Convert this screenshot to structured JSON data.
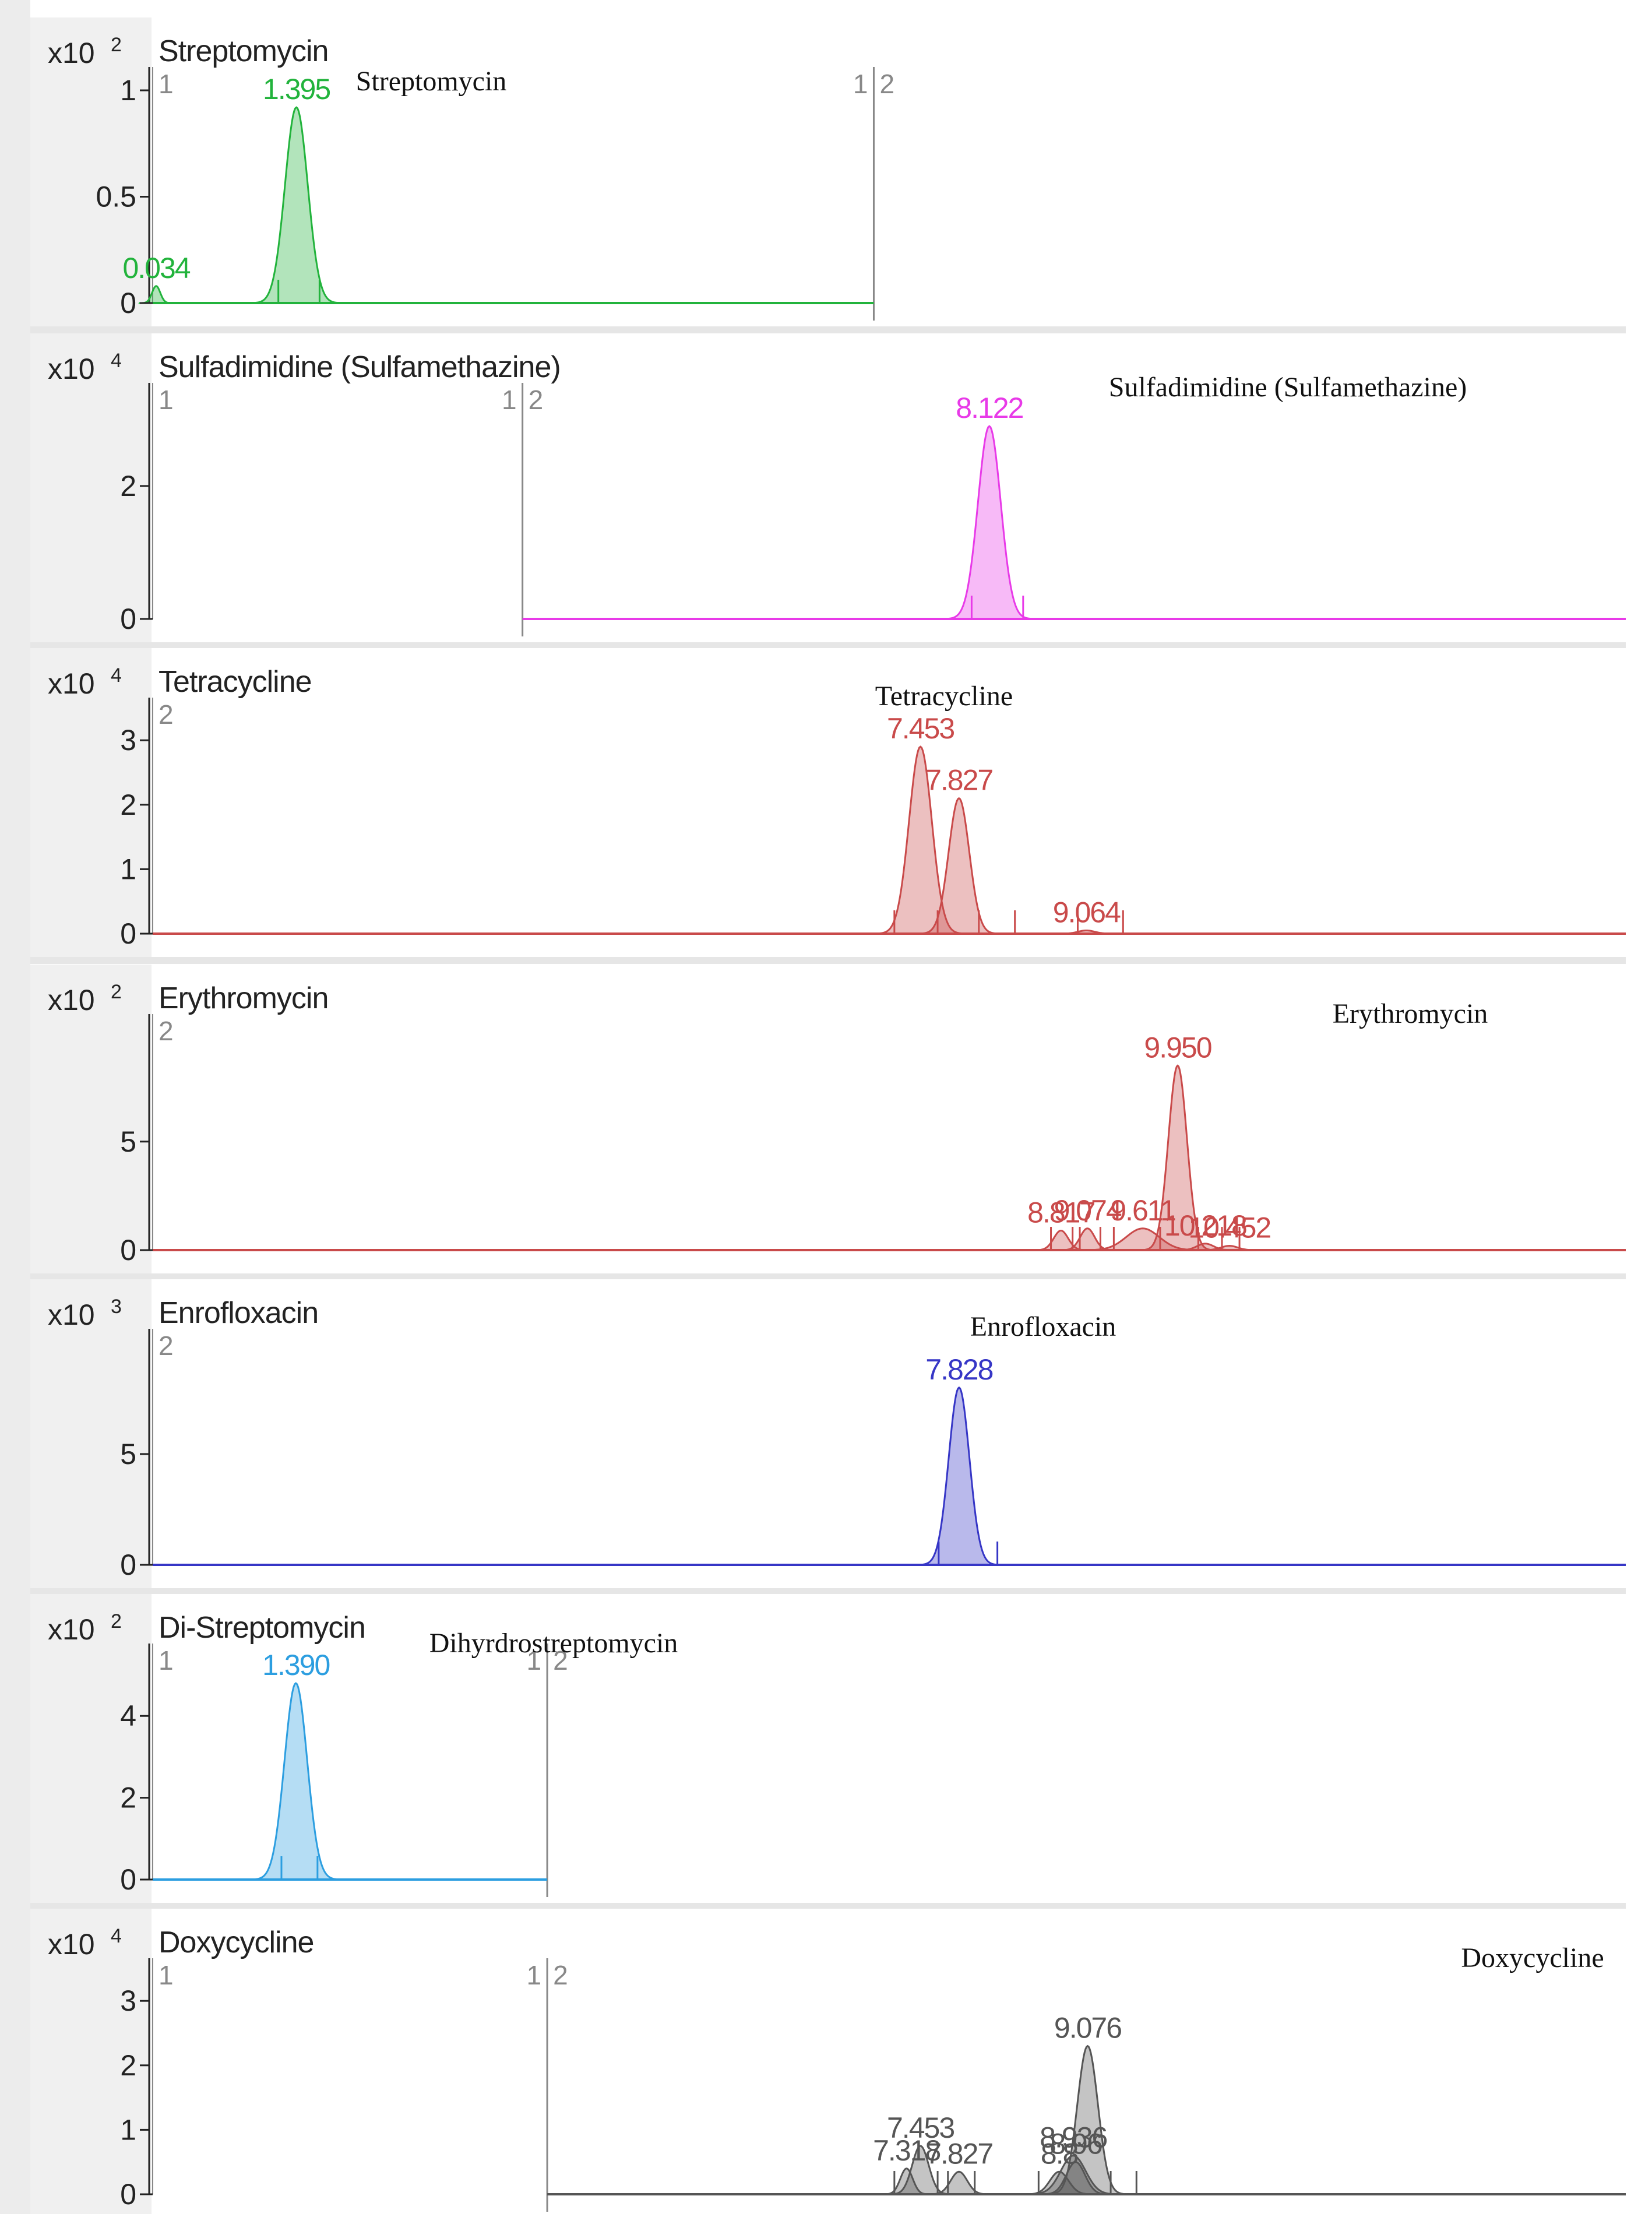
{
  "figure": {
    "chart_data": [
      {
        "type": "line",
        "title": "Streptomycin",
        "annotation": "Streptomycin",
        "exponent_base": "x10",
        "exponent": "2",
        "color": "#22b33c",
        "x_range": [
          0,
          14.3
        ],
        "segments": [
          {
            "label_start": "1",
            "label_end": "1",
            "x_start": 0,
            "x_end": 7.0
          },
          {
            "label_start": "2",
            "label_end": "",
            "x_start": 7.0,
            "x_end": 14.3
          }
        ],
        "baseline_x": [
          0,
          7.0
        ],
        "y_ticks": [
          {
            "value": 0,
            "label": "0"
          },
          {
            "value": 0.5,
            "label": "0.5"
          },
          {
            "value": 1,
            "label": "1"
          }
        ],
        "ylim": [
          0,
          1.0
        ],
        "peaks": [
          {
            "rt": 0.034,
            "label": "0.034",
            "height": 0.08,
            "width": 0.04
          },
          {
            "rt": 1.395,
            "label": "1.395",
            "height": 0.92,
            "width": 0.11
          }
        ],
        "integration_marks": [
          1.22,
          1.62
        ]
      },
      {
        "type": "line",
        "title": "Sulfadimidine (Sulfamethazine)",
        "annotation": "Sulfadimidine (Sulfamethazine)",
        "exponent_base": "x10",
        "exponent": "4",
        "color": "#e83ae8",
        "x_range": [
          0,
          14.3
        ],
        "segments": [
          {
            "label_start": "1",
            "label_end": "1",
            "x_start": 0,
            "x_end": 3.59
          },
          {
            "label_start": "2",
            "label_end": "",
            "x_start": 3.59,
            "x_end": 14.3
          }
        ],
        "baseline_x": [
          3.59,
          14.3
        ],
        "y_ticks": [
          {
            "value": 0,
            "label": "0"
          },
          {
            "value": 2,
            "label": "2"
          }
        ],
        "ylim": [
          0,
          3.2
        ],
        "peaks": [
          {
            "rt": 8.122,
            "label": "8.122",
            "height": 2.9,
            "width": 0.11
          }
        ],
        "integration_marks": [
          7.95,
          8.45
        ]
      },
      {
        "type": "line",
        "title": "Tetracycline",
        "annotation": "Tetracycline",
        "exponent_base": "x10",
        "exponent": "4",
        "color": "#c94a4a",
        "x_range": [
          0,
          14.3
        ],
        "segments": [
          {
            "label_start": "2",
            "label_end": "",
            "x_start": 0,
            "x_end": 14.3
          }
        ],
        "baseline_x": [
          0,
          14.3
        ],
        "y_ticks": [
          {
            "value": 0,
            "label": "0"
          },
          {
            "value": 1,
            "label": "1"
          },
          {
            "value": 2,
            "label": "2"
          },
          {
            "value": 3,
            "label": "3"
          }
        ],
        "ylim": [
          0,
          3.3
        ],
        "peaks": [
          {
            "rt": 7.453,
            "label": "7.453",
            "height": 2.9,
            "width": 0.11
          },
          {
            "rt": 7.827,
            "label": "7.827",
            "height": 2.1,
            "width": 0.1
          },
          {
            "rt": 9.064,
            "label": "9.064",
            "height": 0.05,
            "width": 0.08
          }
        ],
        "integration_marks": [
          7.2,
          7.62,
          8.02,
          8.37,
          8.98,
          9.42
        ]
      },
      {
        "type": "line",
        "title": "Erythromycin",
        "annotation": "Erythromycin",
        "exponent_base": "x10",
        "exponent": "2",
        "color": "#c94a4a",
        "x_range": [
          0,
          14.3
        ],
        "segments": [
          {
            "label_start": "2",
            "label_end": "",
            "x_start": 0,
            "x_end": 14.3
          }
        ],
        "baseline_x": [
          0,
          14.3
        ],
        "y_ticks": [
          {
            "value": 0,
            "label": "0"
          },
          {
            "value": 5,
            "label": "5"
          }
        ],
        "ylim": [
          0,
          9.8
        ],
        "peaks": [
          {
            "rt": 8.817,
            "label": "8.817",
            "height": 0.9,
            "width": 0.07
          },
          {
            "rt": 9.074,
            "label": "9.074",
            "height": 1.0,
            "width": 0.07
          },
          {
            "rt": 9.611,
            "label": "9.611",
            "height": 1.0,
            "width": 0.16
          },
          {
            "rt": 9.95,
            "label": "9.950",
            "height": 8.5,
            "width": 0.09
          },
          {
            "rt": 10.218,
            "label": "10.218",
            "height": 0.3,
            "width": 0.08
          },
          {
            "rt": 10.452,
            "label": "10.452",
            "height": 0.2,
            "width": 0.08
          }
        ],
        "integration_marks": [
          8.72,
          8.93,
          9.0,
          9.2,
          9.33,
          9.78,
          10.15,
          10.38,
          10.55
        ]
      },
      {
        "type": "line",
        "title": "Enrofloxacin",
        "annotation": "Enrofloxacin",
        "exponent_base": "x10",
        "exponent": "3",
        "color": "#3636c6",
        "x_range": [
          0,
          14.3
        ],
        "segments": [
          {
            "label_start": "2",
            "label_end": "",
            "x_start": 0,
            "x_end": 14.3
          }
        ],
        "baseline_x": [
          0,
          14.3
        ],
        "y_ticks": [
          {
            "value": 0,
            "label": "0"
          },
          {
            "value": 5,
            "label": "5"
          }
        ],
        "ylim": [
          0,
          9.6
        ],
        "peaks": [
          {
            "rt": 7.828,
            "label": "7.828",
            "height": 8.0,
            "width": 0.1
          }
        ],
        "integration_marks": [
          7.63,
          8.2
        ]
      },
      {
        "type": "line",
        "title": "Di-Streptomycin",
        "annotation": "Dihyrdrostreptomycin",
        "exponent_base": "x10",
        "exponent": "2",
        "color": "#2c9ee0",
        "x_range": [
          0,
          14.3
        ],
        "segments": [
          {
            "label_start": "1",
            "label_end": "1",
            "x_start": 0,
            "x_end": 3.83
          },
          {
            "label_start": "2",
            "label_end": "",
            "x_start": 3.83,
            "x_end": 14.3
          }
        ],
        "baseline_x": [
          0,
          3.83
        ],
        "y_ticks": [
          {
            "value": 0,
            "label": "0"
          },
          {
            "value": 2,
            "label": "2"
          },
          {
            "value": 4,
            "label": "4"
          }
        ],
        "ylim": [
          0,
          5.2
        ],
        "peaks": [
          {
            "rt": 1.39,
            "label": "1.390",
            "height": 4.8,
            "width": 0.11
          }
        ],
        "integration_marks": [
          1.25,
          1.6
        ]
      },
      {
        "type": "line",
        "title": "Doxycycline",
        "annotation": "Doxycycline",
        "exponent_base": "x10",
        "exponent": "4",
        "color": "#555555",
        "x_range": [
          0,
          14.3
        ],
        "segments": [
          {
            "label_start": "1",
            "label_end": "1",
            "x_start": 0,
            "x_end": 3.83
          },
          {
            "label_start": "2",
            "label_end": "",
            "x_start": 3.83,
            "x_end": 14.3
          }
        ],
        "baseline_x": [
          3.83,
          14.3
        ],
        "y_ticks": [
          {
            "value": 0,
            "label": "0"
          },
          {
            "value": 1,
            "label": "1"
          },
          {
            "value": 2,
            "label": "2"
          },
          {
            "value": 3,
            "label": "3"
          }
        ],
        "ylim": [
          0,
          3.3
        ],
        "peaks": [
          {
            "rt": 7.318,
            "label": "7.318",
            "height": 0.4,
            "width": 0.06
          },
          {
            "rt": 7.453,
            "label": "7.453",
            "height": 0.75,
            "width": 0.08
          },
          {
            "rt": 7.827,
            "label": "7.827",
            "height": 0.35,
            "width": 0.08
          },
          {
            "rt": 8.8,
            "label": "8.8",
            "height": 0.35,
            "width": 0.09
          },
          {
            "rt": 8.96,
            "label": "8.96",
            "height": 0.5,
            "width": 0.09
          },
          {
            "rt": 8.936,
            "label": "8.936",
            "height": 0.6,
            "width": 0.12
          },
          {
            "rt": 9.076,
            "label": "9.076",
            "height": 2.3,
            "width": 0.1
          }
        ],
        "integration_marks": [
          7.2,
          7.62,
          7.72,
          7.98,
          8.6,
          9.3,
          9.55
        ]
      }
    ]
  }
}
